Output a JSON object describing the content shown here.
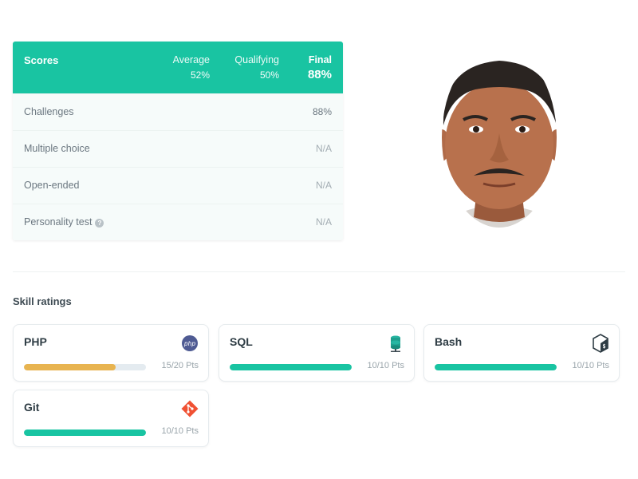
{
  "scores": {
    "header_label": "Scores",
    "columns": [
      {
        "title": "Average",
        "value": "52%"
      },
      {
        "title": "Qualifying",
        "value": "50%"
      },
      {
        "title": "Final",
        "value": "88%"
      }
    ],
    "rows": [
      {
        "label": "Challenges",
        "value": "88%"
      },
      {
        "label": "Multiple choice",
        "value": "N/A"
      },
      {
        "label": "Open-ended",
        "value": "N/A"
      },
      {
        "label": "Personality test",
        "value": "N/A",
        "help_icon": "question-circle-icon"
      }
    ]
  },
  "skills": {
    "title": "Skill ratings",
    "items": [
      {
        "name": "PHP",
        "points": "15/20 Pts",
        "progress": 0.75,
        "color": "#e8b450",
        "icon": "php-icon"
      },
      {
        "name": "SQL",
        "points": "10/10 Pts",
        "progress": 1.0,
        "color": "#19c4a2",
        "icon": "database-icon"
      },
      {
        "name": "Bash",
        "points": "10/10 Pts",
        "progress": 1.0,
        "color": "#19c4a2",
        "icon": "bash-icon"
      },
      {
        "name": "Git",
        "points": "10/10 Pts",
        "progress": 1.0,
        "color": "#19c4a2",
        "icon": "git-icon"
      }
    ]
  },
  "colors": {
    "accent": "#19c4a2",
    "warning": "#e8b450"
  }
}
